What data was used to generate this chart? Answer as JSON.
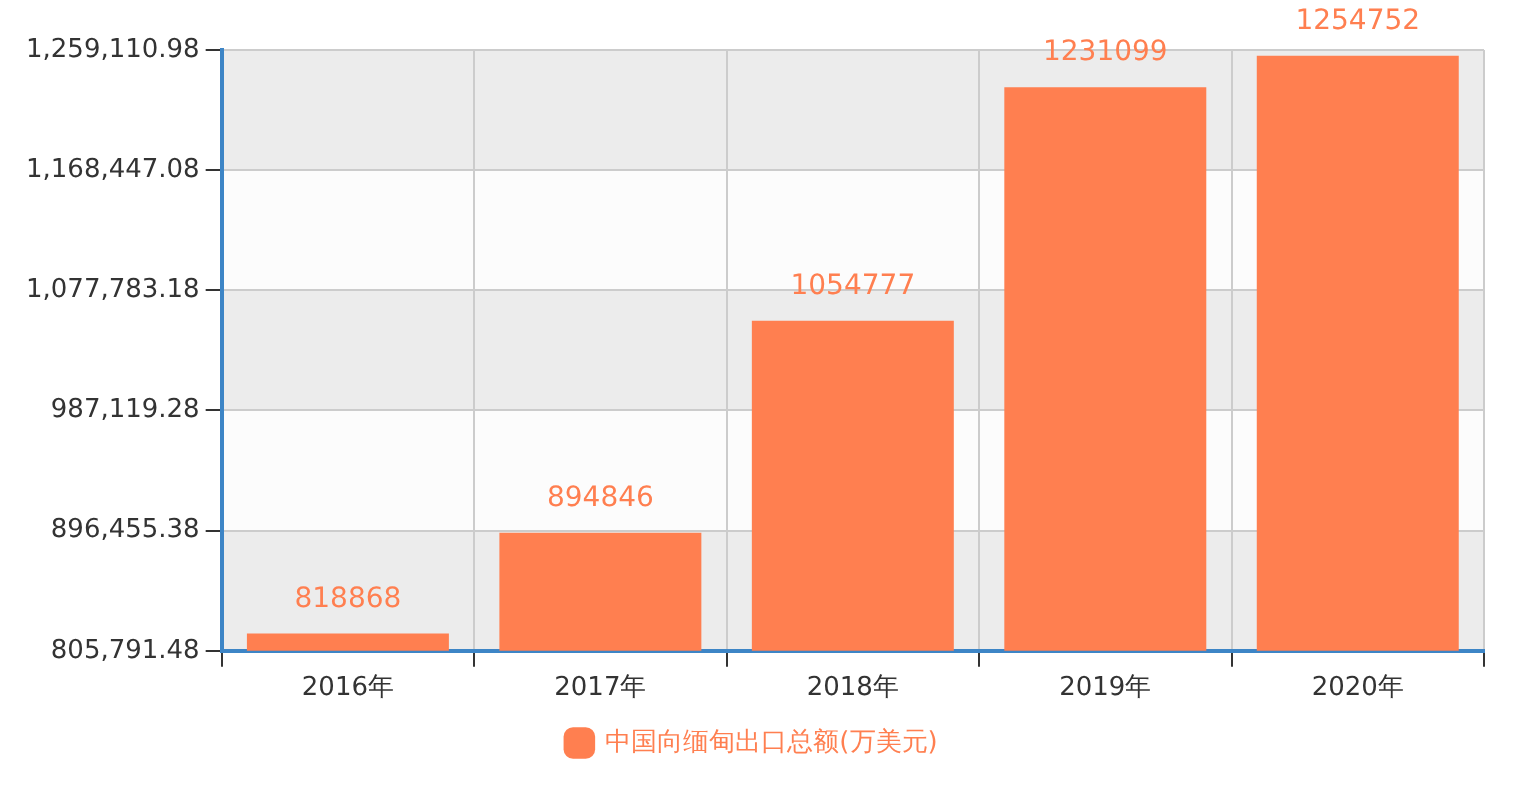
{
  "chart_data": {
    "type": "bar",
    "categories": [
      "2016年",
      "2017年",
      "2018年",
      "2019年",
      "2020年"
    ],
    "series": [
      {
        "name": "中国向缅甸出口总额(万美元)",
        "color": "#ff7f50",
        "values": [
          818868,
          894846,
          1054777,
          1231099,
          1254752
        ]
      }
    ],
    "ylim": [
      805791.48,
      1259110.98
    ],
    "yticks": [
      {
        "value": 805791.48,
        "label": "805,791.48"
      },
      {
        "value": 896455.38,
        "label": "896,455.38"
      },
      {
        "value": 987119.28,
        "label": "987,119.28"
      },
      {
        "value": 1077783.18,
        "label": "1,077,783.18"
      },
      {
        "value": 1168447.08,
        "label": "1,168,447.08"
      },
      {
        "value": 1259110.98,
        "label": "1,259,110.98"
      }
    ],
    "grid": true,
    "legend": "bottom",
    "data_labels": true
  }
}
